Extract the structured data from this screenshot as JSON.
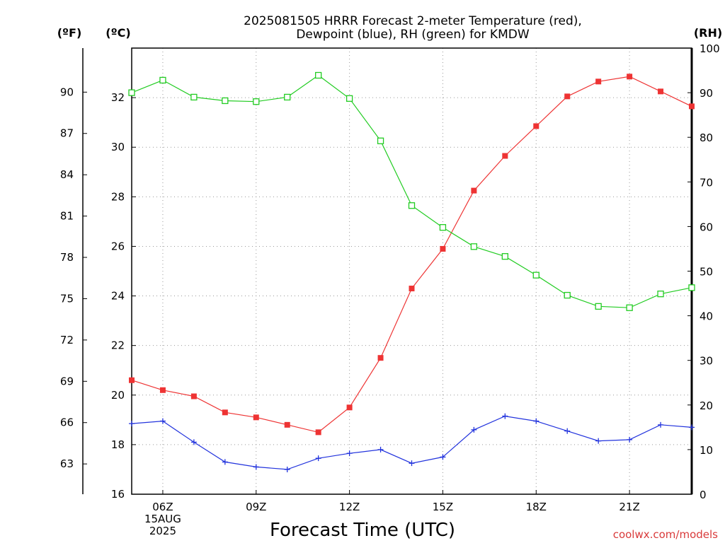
{
  "chart_data": {
    "type": "line",
    "title": [
      "2025081505 HRRR Forecast 2-meter Temperature (red),",
      "Dewpoint (blue), RH (green) for KMDW"
    ],
    "xlabel": "Forecast Time (UTC)",
    "x": [
      "05Z",
      "06Z",
      "07Z",
      "08Z",
      "09Z",
      "10Z",
      "11Z",
      "12Z",
      "13Z",
      "14Z",
      "15Z",
      "16Z",
      "17Z",
      "18Z",
      "19Z",
      "20Z",
      "21Z",
      "22Z",
      "23Z"
    ],
    "x_tick_labels": [
      {
        "x": "06Z",
        "lines": [
          "06Z",
          "15AUG",
          "2025"
        ]
      },
      {
        "x": "09Z",
        "lines": [
          "09Z"
        ]
      },
      {
        "x": "12Z",
        "lines": [
          "12Z"
        ]
      },
      {
        "x": "15Z",
        "lines": [
          "15Z"
        ]
      },
      {
        "x": "18Z",
        "lines": [
          "18Z"
        ]
      },
      {
        "x": "21Z",
        "lines": [
          "21Z"
        ]
      }
    ],
    "y_celsius": {
      "label": "(ºC)",
      "range": [
        16,
        34
      ],
      "ticks": [
        16,
        18,
        20,
        22,
        24,
        26,
        28,
        30,
        32
      ]
    },
    "y_fahrenheit": {
      "label": "(ºF)",
      "ticks": [
        63,
        66,
        69,
        72,
        75,
        78,
        81,
        84,
        87,
        90
      ]
    },
    "y_rh": {
      "label": "(RH)",
      "range": [
        0,
        100
      ],
      "ticks": [
        0,
        10,
        20,
        30,
        40,
        50,
        60,
        70,
        80,
        90,
        100
      ]
    },
    "grid": true,
    "series": [
      {
        "name": "Temperature",
        "color": "#ee3333",
        "marker": "filled-square",
        "axis": "celsius",
        "values": [
          20.6,
          20.2,
          19.95,
          19.3,
          19.1,
          18.8,
          18.5,
          19.5,
          21.5,
          24.3,
          25.9,
          28.25,
          29.65,
          30.85,
          32.05,
          32.65,
          32.85,
          32.25,
          31.65
        ]
      },
      {
        "name": "Dewpoint",
        "color": "#2233dd",
        "marker": "plus",
        "axis": "celsius",
        "values": [
          18.85,
          18.95,
          18.1,
          17.3,
          17.1,
          17.0,
          17.45,
          17.65,
          17.8,
          17.25,
          17.5,
          18.6,
          19.15,
          18.95,
          18.55,
          18.15,
          18.2,
          18.8,
          18.7
        ]
      },
      {
        "name": "RH",
        "color": "#22cc22",
        "marker": "open-square",
        "axis": "rh",
        "values": [
          90,
          92.8,
          89,
          88.2,
          88,
          89,
          93.9,
          88.7,
          79.2,
          64.7,
          59.8,
          55.5,
          53.3,
          49.1,
          44.6,
          42.1,
          41.8,
          44.9,
          46.3
        ]
      }
    ]
  },
  "credit": "coolwx.com/models"
}
